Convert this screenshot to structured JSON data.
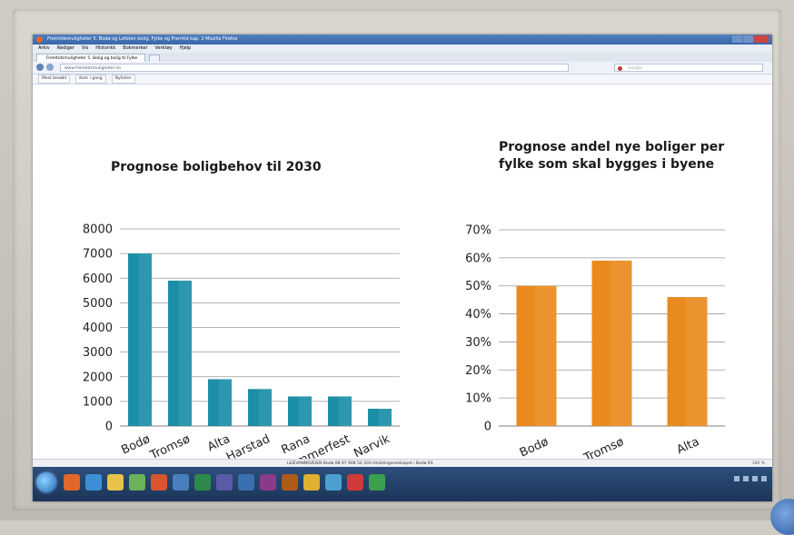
{
  "browser": {
    "window_title": "Fremtidsmuligheter 5. Bodø og Lofoten bolig, Fylke og Fremtid kap. 2 Mozilla Firefox",
    "menu": [
      "Arkiv",
      "Rediger",
      "Vis",
      "Historikk",
      "Bokmerker",
      "Verktøy",
      "Hjelp"
    ],
    "tab_label": "Fremtidsmuligheter 5. Bolig og bolig til Fylke",
    "url": "www.fremtidsmuligheter.no",
    "search_placeholder": "Google",
    "bookmarks": [
      "Mest besøkt",
      "Kom i gang",
      "Nyheter"
    ],
    "status_text": "LEIEVANNSVEIEN Bodø 08 97 908 54 203 Utviklingsselskapet i Bodø KS",
    "zoom_text": "100 %"
  },
  "colors": {
    "bar_teal": "#1b8fa8",
    "bar_orange": "#ea8a1e",
    "gridline": "#9a9a9a"
  },
  "chart_data": [
    {
      "type": "bar",
      "title": "Prognose boligbehov til 2030",
      "categories": [
        "Bodø",
        "Tromsø",
        "Alta",
        "Harstad",
        "Rana",
        "Hammerfest",
        "Narvik"
      ],
      "values": [
        7000,
        5900,
        1900,
        1500,
        1200,
        1200,
        700
      ],
      "ylim": [
        0,
        8000
      ],
      "yticks": [
        "0",
        "1000",
        "2000",
        "3000",
        "4000",
        "5000",
        "6000",
        "7000",
        "8000"
      ],
      "grid": true,
      "color": "#1b8fa8"
    },
    {
      "type": "bar",
      "title_lines": [
        "Prognose andel nye boliger per",
        "fylke som skal bygges i byene"
      ],
      "categories": [
        "Bodø",
        "Tromsø",
        "Alta"
      ],
      "values": [
        0.5,
        0.59,
        0.46
      ],
      "ylim": [
        0,
        0.7
      ],
      "yticks": [
        "0",
        "10%",
        "20%",
        "30%",
        "40%",
        "50%",
        "60%",
        "70%"
      ],
      "grid": true,
      "color": "#ea8a1e"
    }
  ]
}
